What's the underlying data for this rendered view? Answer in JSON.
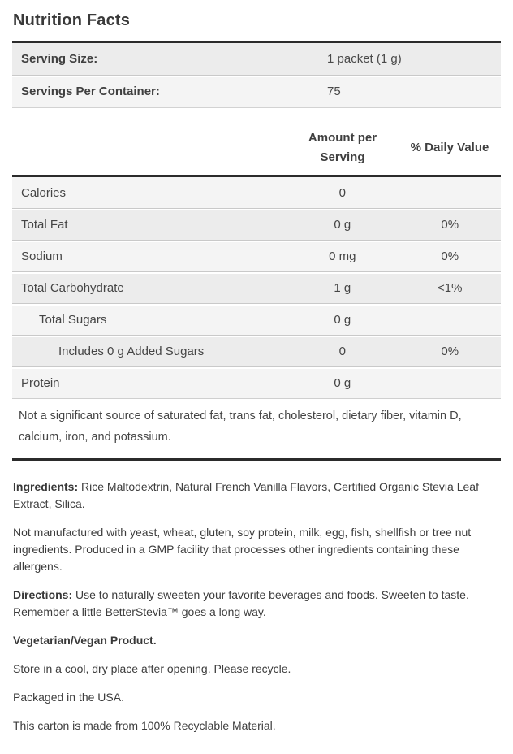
{
  "title": "Nutrition Facts",
  "serving_table": {
    "rows": [
      {
        "label": "Serving Size:",
        "value": "1 packet (1 g)"
      },
      {
        "label": "Servings Per Container:",
        "value": "75"
      }
    ]
  },
  "facts_table": {
    "amount_header": "Amount per Serving",
    "daily_header": "% Daily Value",
    "rows": [
      {
        "label": "Calories",
        "amount": "0",
        "daily": ""
      },
      {
        "label": "Total Fat",
        "amount": "0 g",
        "daily": "0%"
      },
      {
        "label": "Sodium",
        "amount": "0 mg",
        "daily": "0%"
      },
      {
        "label": "Total Carbohydrate",
        "amount": "1 g",
        "daily": "<1%"
      },
      {
        "label": "Total Sugars",
        "amount": "0 g",
        "daily": ""
      },
      {
        "label": "Includes 0 g Added Sugars",
        "amount": "0",
        "daily": "0%"
      },
      {
        "label": "Protein",
        "amount": "0 g",
        "daily": ""
      }
    ],
    "footnote": "Not a significant source of saturated fat, trans fat, cholesterol, dietary fiber, vitamin D, calcium, iron, and potassium."
  },
  "paragraphs": [
    {
      "lead": "Ingredients:",
      "text": " Rice Maltodextrin, Natural French Vanilla Flavors, Certified Organic Stevia Leaf Extract, Silica."
    },
    {
      "lead": "",
      "text": "Not manufactured with yeast, wheat, gluten, soy protein, milk, egg, fish, shellfish or tree nut ingredients. Produced in a GMP facility that processes other ingredients containing these allergens."
    },
    {
      "lead": "Directions:",
      "text": " Use to naturally sweeten your favorite beverages and foods. Sweeten to taste. Remember a little BetterStevia™ goes a long way."
    },
    {
      "lead": "Vegetarian/Vegan Product.",
      "text": ""
    },
    {
      "lead": "",
      "text": "Store in a cool, dry place after opening. Please recycle."
    },
    {
      "lead": "",
      "text": "Packaged in the USA."
    },
    {
      "lead": "",
      "text": "This carton is made from 100% Recyclable Material."
    }
  ],
  "colors": {
    "heavy_border": "#2b2b2b",
    "thin_divider": "#c9c9c9",
    "row_light": "#f4f4f4",
    "row_dark": "#ececec",
    "text": "#414141",
    "background": "#ffffff"
  }
}
